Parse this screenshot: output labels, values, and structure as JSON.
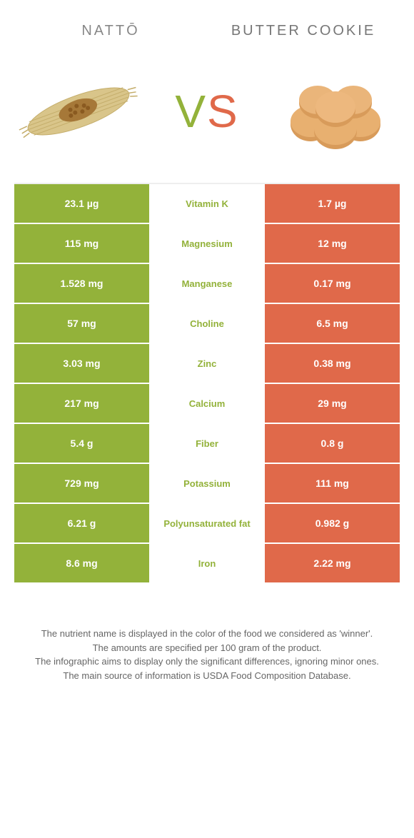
{
  "header": {
    "left_title": "NATTŌ",
    "right_title": "BUTTER COOKIE",
    "vs_v": "V",
    "vs_s": "S"
  },
  "colors": {
    "green": "#93b23a",
    "orange": "#e0694a",
    "text": "#666"
  },
  "rows": [
    {
      "left": "23.1 µg",
      "label": "Vitamin K",
      "winner": "green",
      "right": "1.7 µg"
    },
    {
      "left": "115 mg",
      "label": "Magnesium",
      "winner": "green",
      "right": "12 mg"
    },
    {
      "left": "1.528 mg",
      "label": "Manganese",
      "winner": "green",
      "right": "0.17 mg"
    },
    {
      "left": "57 mg",
      "label": "Choline",
      "winner": "green",
      "right": "6.5 mg"
    },
    {
      "left": "3.03 mg",
      "label": "Zinc",
      "winner": "green",
      "right": "0.38 mg"
    },
    {
      "left": "217 mg",
      "label": "Calcium",
      "winner": "green",
      "right": "29 mg"
    },
    {
      "left": "5.4 g",
      "label": "Fiber",
      "winner": "green",
      "right": "0.8 g"
    },
    {
      "left": "729 mg",
      "label": "Potassium",
      "winner": "green",
      "right": "111 mg"
    },
    {
      "left": "6.21 g",
      "label": "Polyunsaturated fat",
      "winner": "green",
      "right": "0.982 g"
    },
    {
      "left": "8.6 mg",
      "label": "Iron",
      "winner": "green",
      "right": "2.22 mg"
    }
  ],
  "footer": {
    "line1": "The nutrient name is displayed in the color of the food we considered as 'winner'.",
    "line2": "The amounts are specified per 100 gram of the product.",
    "line3": "The infographic aims to display only the significant differences, ignoring minor ones.",
    "line4": "The main source of information is USDA Food Composition Database."
  }
}
